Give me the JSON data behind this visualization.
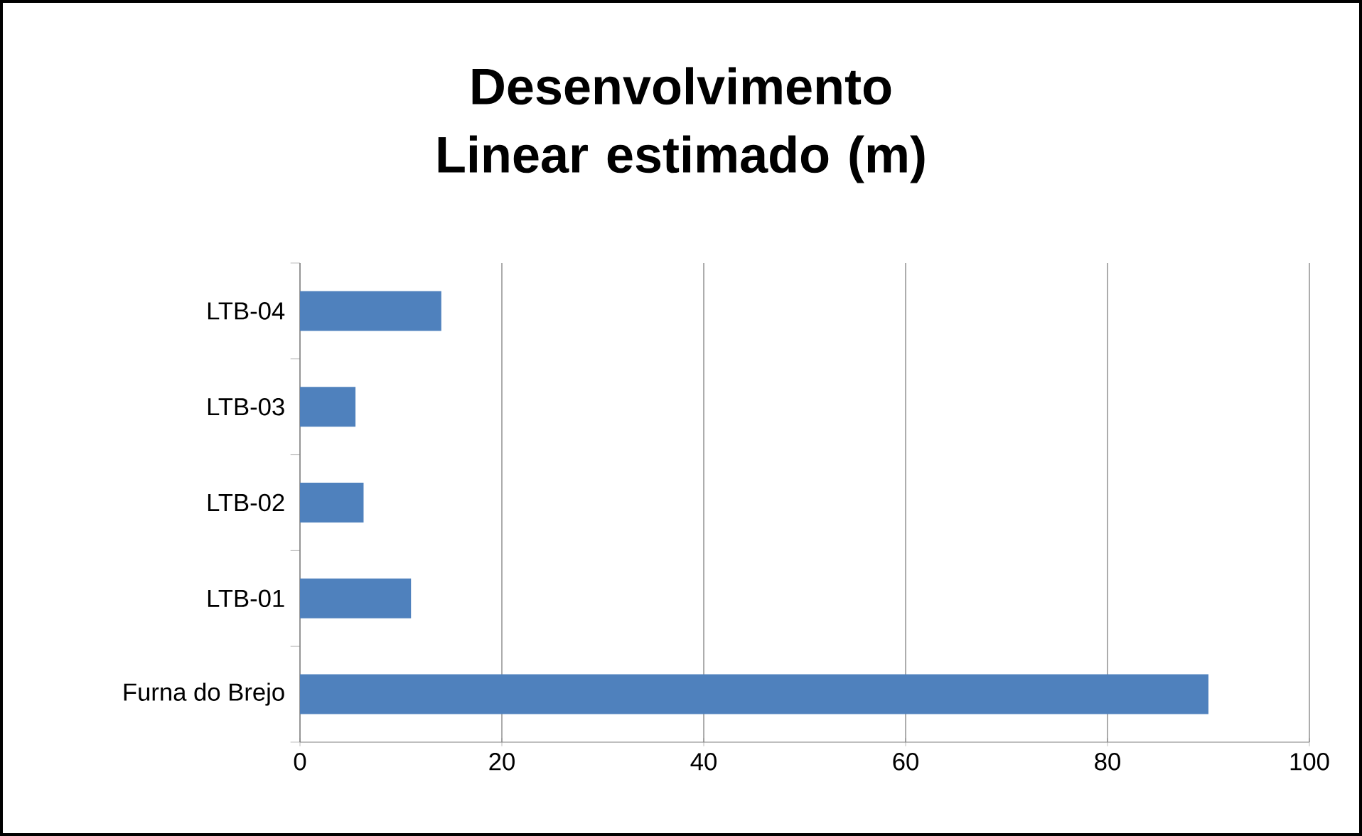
{
  "chart_data": {
    "type": "bar",
    "orientation": "horizontal",
    "title": "Desenvolvimento Linear estimado (m)",
    "categories": [
      "LTB-04",
      "LTB-03",
      "LTB-02",
      "LTB-01",
      "Furna do Brejo"
    ],
    "values": [
      14,
      5.5,
      6.3,
      11,
      90
    ],
    "color": "#4f81bd",
    "xlim": [
      0,
      100
    ],
    "xticks": [
      0,
      20,
      40,
      60,
      80,
      100
    ],
    "grid": "x"
  }
}
